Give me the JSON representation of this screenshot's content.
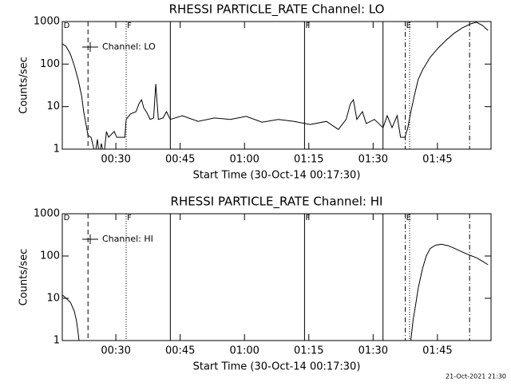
{
  "chart_data": [
    {
      "type": "line",
      "title": "RHESSI PARTICLE_RATE Channel: LO",
      "xlabel": "Start Time (30-Oct-14 00:17:30)",
      "ylabel": "Counts/sec",
      "log_y": true,
      "legend": "upper left",
      "x": [
        17.5,
        18.4,
        19.4,
        20.3,
        21.2,
        22.0,
        22.5,
        23.1,
        23.5,
        24.2,
        24.8,
        25.1,
        25.7,
        26.1,
        26.6,
        27.2,
        27.8,
        28.3,
        29.6,
        30.2,
        32.1,
        32.4,
        33.4,
        34.7,
        35.4,
        36.0,
        36.5,
        37.3,
        38.0,
        38.8,
        39.3,
        39.9,
        41.0,
        41.8,
        42.7,
        45.5,
        49.2,
        53.0,
        56.7,
        60.4,
        64.1,
        67.9,
        71.6,
        75.3,
        79.1,
        81.9,
        83.7,
        84.7,
        85.4,
        86.2,
        87.5,
        88.4,
        90.3,
        92.3,
        93.3,
        94.4,
        95.6,
        96.4,
        97.4,
        98.1,
        98.8,
        99.6,
        100.5,
        101.5,
        103.3,
        105.2,
        107.1,
        108.9,
        110.8,
        112.7,
        114.1,
        115.5,
        116.8
      ],
      "series": [
        {
          "name": "Channel: LO",
          "color": "#000000",
          "values": [
            300,
            260,
            170,
            93,
            43,
            18,
            7.6,
            3.5,
            2.1,
            1.9,
            1.1,
            0.7,
            1.7,
            0.7,
            1.35,
            0.7,
            2.6,
            1.9,
            2.6,
            1.9,
            1.9,
            5,
            6.7,
            7.6,
            11.7,
            14.5,
            9.4,
            7,
            5,
            5.4,
            34,
            5,
            5.4,
            7.6,
            5,
            6.1,
            4.5,
            5.4,
            5,
            5.9,
            4.3,
            5,
            4.5,
            3.8,
            4.5,
            2.9,
            5,
            11.7,
            14.5,
            5,
            7.6,
            4,
            5,
            3.2,
            6.1,
            3.2,
            6.1,
            1.9,
            1.9,
            3.2,
            7.6,
            18,
            43,
            72,
            144,
            240,
            370,
            530,
            710,
            880,
            960,
            810,
            620
          ]
        }
      ],
      "xlim": [
        17.5,
        117.5
      ],
      "xticks": [
        {
          "value": 30,
          "label": "00:30"
        },
        {
          "value": 45,
          "label": "00:45"
        },
        {
          "value": 60,
          "label": "01:00"
        },
        {
          "value": 75,
          "label": "01:15"
        },
        {
          "value": 90,
          "label": "01:30"
        },
        {
          "value": 105,
          "label": "01:45"
        }
      ],
      "ylim": [
        1,
        1000
      ],
      "yticks": [
        1,
        10,
        100,
        1000
      ],
      "vlines": [
        {
          "x": 23.5,
          "style": "dashed"
        },
        {
          "x": 32.4,
          "style": "dotted"
        },
        {
          "x": 42.7,
          "style": "solid"
        },
        {
          "x": 74.0,
          "style": "solid"
        },
        {
          "x": 92.3,
          "style": "solid"
        },
        {
          "x": 97.5,
          "style": "dashdot"
        },
        {
          "x": 98.5,
          "style": "dotted"
        },
        {
          "x": 112.5,
          "style": "dashdot"
        }
      ],
      "flags": [
        {
          "x": 17.8,
          "label": "D"
        },
        {
          "x": 32.6,
          "label": "F"
        },
        {
          "x": 74.2,
          "label": "F"
        },
        {
          "x": 97.7,
          "label": "E"
        }
      ]
    },
    {
      "type": "line",
      "title": "RHESSI PARTICLE_RATE Channel: HI",
      "xlabel": "Start Time (30-Oct-14 00:17:30)",
      "ylabel": "Counts/sec",
      "log_y": true,
      "legend": "upper left",
      "x": [
        17.5,
        18.4,
        19.4,
        20.3,
        20.8,
        21.2,
        21.5,
        60,
        98.7,
        99.3,
        99.8,
        100.5,
        101.5,
        102.4,
        103.3,
        104.5,
        105.9,
        107.5,
        109.1,
        110.8,
        112.5,
        114.2,
        115.5,
        116.8
      ],
      "series": [
        {
          "name": "Channel: HI",
          "color": "#000000",
          "values": [
            12,
            10,
            8,
            5,
            3,
            1.5,
            0.8,
            null,
            0.8,
            3,
            6,
            17,
            50,
            100,
            150,
            180,
            190,
            175,
            150,
            125,
            105,
            90,
            75,
            62
          ]
        }
      ],
      "xlim": [
        17.5,
        117.5
      ],
      "xticks": [
        {
          "value": 30,
          "label": "00:30"
        },
        {
          "value": 45,
          "label": "00:45"
        },
        {
          "value": 60,
          "label": "01:00"
        },
        {
          "value": 75,
          "label": "01:15"
        },
        {
          "value": 90,
          "label": "01:30"
        },
        {
          "value": 105,
          "label": "01:45"
        }
      ],
      "ylim": [
        1,
        1000
      ],
      "yticks": [
        1,
        10,
        100,
        1000
      ],
      "vlines": [
        {
          "x": 23.5,
          "style": "dashed"
        },
        {
          "x": 32.4,
          "style": "dotted"
        },
        {
          "x": 42.7,
          "style": "solid"
        },
        {
          "x": 74.0,
          "style": "solid"
        },
        {
          "x": 92.3,
          "style": "solid"
        },
        {
          "x": 97.5,
          "style": "dashdot"
        },
        {
          "x": 98.5,
          "style": "dotted"
        },
        {
          "x": 112.5,
          "style": "dashdot"
        }
      ],
      "flags": [
        {
          "x": 17.8,
          "label": "D"
        },
        {
          "x": 32.6,
          "label": "F"
        },
        {
          "x": 74.2,
          "label": "F"
        },
        {
          "x": 97.7,
          "label": "E"
        }
      ]
    }
  ],
  "footer": "21-Oct-2021 21:30"
}
